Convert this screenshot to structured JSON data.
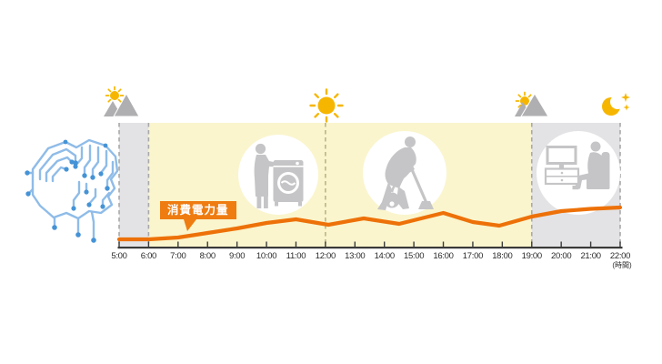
{
  "callout": {
    "label": "消費電力量"
  },
  "axis": {
    "unit_label": "(時間)"
  },
  "palette": {
    "accent_orange": "#ED7108",
    "callout_orange": "#EF7C10",
    "band_yellow": "#FAF5CD",
    "band_gray": "#E3E3E5",
    "silhouette_gray": "#C5C5C7",
    "mountain_gray": "#AFAFB1",
    "sun_yellow": "#F6B600",
    "brain_line_blue": "#8FBCE8",
    "brain_node_blue": "#4593D6",
    "axis_dark": "#3A3A3A"
  },
  "icons": {
    "left_illustration": "brain-circuit-icon",
    "period_markers": [
      "sunrise-mountain-icon",
      "noon-sun-icon",
      "sunset-mountain-icon",
      "moon-stars-icon"
    ],
    "activity_markers": [
      "laundry-person-icon",
      "vacuuming-person-icon",
      "tv-viewer-icon"
    ]
  },
  "activities": [
    {
      "icon": "laundry-person-icon",
      "meaning": "doing laundry",
      "approx_time": "10:00-11:00"
    },
    {
      "icon": "vacuuming-person-icon",
      "meaning": "vacuuming",
      "approx_time": "14:00-15:00"
    },
    {
      "icon": "tv-viewer-icon",
      "meaning": "watching TV / relaxing",
      "approx_time": "20:00-21:00"
    }
  ],
  "chart_data": {
    "type": "line",
    "title": "消費電力量 (household power consumption over a day)",
    "series_label": "消費電力量",
    "xlabel": "時間",
    "ylabel": "",
    "xlim": [
      5,
      22
    ],
    "value_note": "relative consumption level; no y-axis scale shown in figure",
    "line_color": "#ED7108",
    "grid": false,
    "x_ticks": [
      {
        "t": 5,
        "label": "5:00"
      },
      {
        "t": 6,
        "label": "6:00"
      },
      {
        "t": 7,
        "label": "7:00"
      },
      {
        "t": 8,
        "label": "8:00"
      },
      {
        "t": 9,
        "label": "9:00"
      },
      {
        "t": 10,
        "label": "10:00"
      },
      {
        "t": 11,
        "label": "11:00"
      },
      {
        "t": 12,
        "label": "12:00"
      },
      {
        "t": 13,
        "label": "13:00"
      },
      {
        "t": 14,
        "label": "14:00"
      },
      {
        "t": 15,
        "label": "15:00"
      },
      {
        "t": 16,
        "label": "16:00"
      },
      {
        "t": 17,
        "label": "17:00"
      },
      {
        "t": 18,
        "label": "18:00"
      },
      {
        "t": 19,
        "label": "19:00"
      },
      {
        "t": 20,
        "label": "20:00"
      },
      {
        "t": 21,
        "label": "21:00"
      },
      {
        "t": 22,
        "label": "22:00"
      }
    ],
    "points": [
      {
        "t": 5.0,
        "v": 8
      },
      {
        "t": 6.0,
        "v": 8
      },
      {
        "t": 7.0,
        "v": 10
      },
      {
        "t": 8.0,
        "v": 15
      },
      {
        "t": 9.0,
        "v": 20
      },
      {
        "t": 10.0,
        "v": 26
      },
      {
        "t": 11.0,
        "v": 30
      },
      {
        "t": 12.1,
        "v": 24
      },
      {
        "t": 13.3,
        "v": 31
      },
      {
        "t": 14.5,
        "v": 25
      },
      {
        "t": 16.0,
        "v": 37
      },
      {
        "t": 17.0,
        "v": 27
      },
      {
        "t": 17.9,
        "v": 23
      },
      {
        "t": 19.0,
        "v": 33
      },
      {
        "t": 20.0,
        "v": 39
      },
      {
        "t": 21.0,
        "v": 41.5
      },
      {
        "t": 22.0,
        "v": 43
      }
    ],
    "bands": [
      {
        "from": 5,
        "to": 6,
        "period": "early-morning",
        "color": "#E3E3E5"
      },
      {
        "from": 6,
        "to": 19,
        "period": "daytime",
        "color": "#FAF5CD"
      },
      {
        "from": 19,
        "to": 22,
        "period": "evening-night",
        "color": "#E3E3E5"
      }
    ],
    "dashed_lines": [
      {
        "t": 5,
        "color": "#A9A9A9"
      },
      {
        "t": 6,
        "color": "#A9A9A9"
      },
      {
        "t": 12,
        "color": "#BDB489"
      },
      {
        "t": 19,
        "color": "#A9A9A9"
      },
      {
        "t": 22,
        "color": "#A9A9A9"
      }
    ]
  }
}
